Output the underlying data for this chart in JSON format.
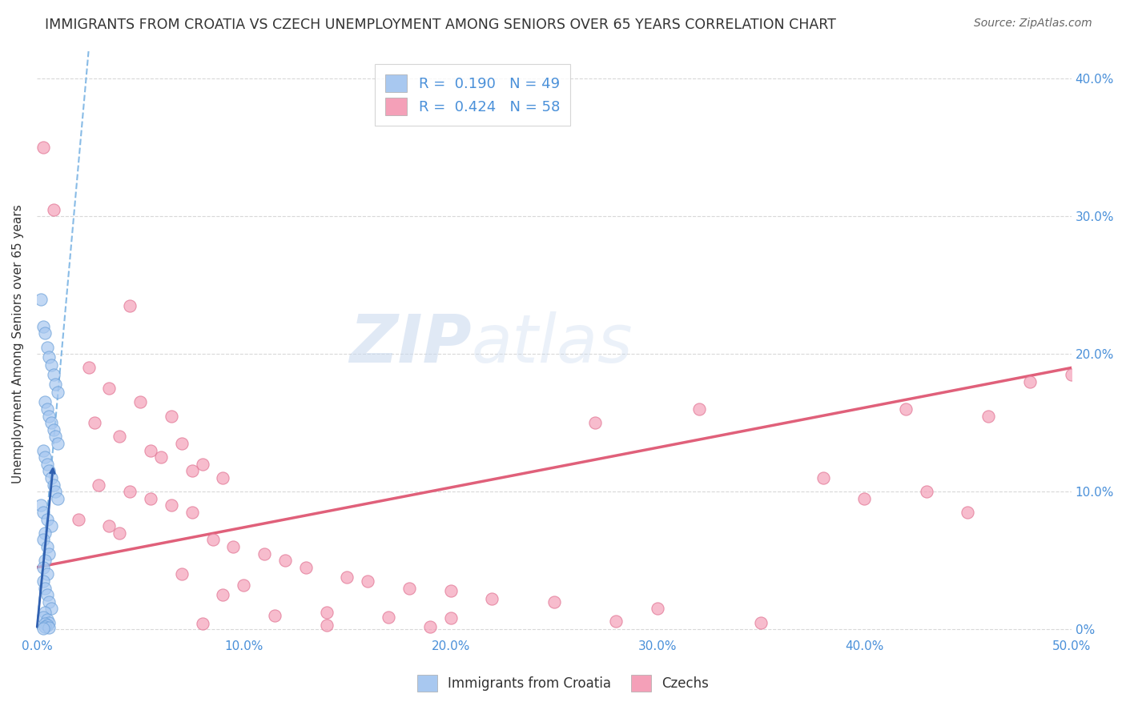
{
  "title": "IMMIGRANTS FROM CROATIA VS CZECH UNEMPLOYMENT AMONG SENIORS OVER 65 YEARS CORRELATION CHART",
  "source": "Source: ZipAtlas.com",
  "ylabel": "Unemployment Among Seniors over 65 years",
  "watermark_zip": "ZIP",
  "watermark_atlas": "atlas",
  "blue_scatter": [
    [
      0.2,
      24.0
    ],
    [
      0.3,
      22.0
    ],
    [
      0.4,
      21.5
    ],
    [
      0.5,
      20.5
    ],
    [
      0.6,
      19.8
    ],
    [
      0.7,
      19.2
    ],
    [
      0.8,
      18.5
    ],
    [
      0.9,
      17.8
    ],
    [
      1.0,
      17.2
    ],
    [
      0.4,
      16.5
    ],
    [
      0.5,
      16.0
    ],
    [
      0.6,
      15.5
    ],
    [
      0.7,
      15.0
    ],
    [
      0.8,
      14.5
    ],
    [
      0.9,
      14.0
    ],
    [
      1.0,
      13.5
    ],
    [
      0.3,
      13.0
    ],
    [
      0.4,
      12.5
    ],
    [
      0.5,
      12.0
    ],
    [
      0.6,
      11.5
    ],
    [
      0.7,
      11.0
    ],
    [
      0.8,
      10.5
    ],
    [
      0.9,
      10.0
    ],
    [
      1.0,
      9.5
    ],
    [
      0.2,
      9.0
    ],
    [
      0.3,
      8.5
    ],
    [
      0.5,
      8.0
    ],
    [
      0.7,
      7.5
    ],
    [
      0.4,
      7.0
    ],
    [
      0.3,
      6.5
    ],
    [
      0.5,
      6.0
    ],
    [
      0.6,
      5.5
    ],
    [
      0.4,
      5.0
    ],
    [
      0.3,
      4.5
    ],
    [
      0.5,
      4.0
    ],
    [
      0.3,
      3.5
    ],
    [
      0.4,
      3.0
    ],
    [
      0.5,
      2.5
    ],
    [
      0.6,
      2.0
    ],
    [
      0.7,
      1.5
    ],
    [
      0.4,
      1.2
    ],
    [
      0.3,
      0.9
    ],
    [
      0.5,
      0.7
    ],
    [
      0.6,
      0.5
    ],
    [
      0.4,
      0.4
    ],
    [
      0.5,
      0.3
    ],
    [
      0.4,
      0.2
    ],
    [
      0.6,
      0.15
    ],
    [
      0.3,
      0.08
    ]
  ],
  "pink_scatter": [
    [
      0.3,
      35.0
    ],
    [
      0.8,
      30.5
    ],
    [
      4.5,
      23.5
    ],
    [
      2.5,
      19.0
    ],
    [
      3.5,
      17.5
    ],
    [
      5.0,
      16.5
    ],
    [
      6.5,
      15.5
    ],
    [
      2.8,
      15.0
    ],
    [
      4.0,
      14.0
    ],
    [
      7.0,
      13.5
    ],
    [
      5.5,
      13.0
    ],
    [
      6.0,
      12.5
    ],
    [
      8.0,
      12.0
    ],
    [
      7.5,
      11.5
    ],
    [
      9.0,
      11.0
    ],
    [
      3.0,
      10.5
    ],
    [
      4.5,
      10.0
    ],
    [
      5.5,
      9.5
    ],
    [
      6.5,
      9.0
    ],
    [
      7.5,
      8.5
    ],
    [
      2.0,
      8.0
    ],
    [
      3.5,
      7.5
    ],
    [
      4.0,
      7.0
    ],
    [
      8.5,
      6.5
    ],
    [
      9.5,
      6.0
    ],
    [
      11.0,
      5.5
    ],
    [
      12.0,
      5.0
    ],
    [
      13.0,
      4.5
    ],
    [
      7.0,
      4.0
    ],
    [
      15.0,
      3.8
    ],
    [
      16.0,
      3.5
    ],
    [
      10.0,
      3.2
    ],
    [
      18.0,
      3.0
    ],
    [
      20.0,
      2.8
    ],
    [
      9.0,
      2.5
    ],
    [
      22.0,
      2.2
    ],
    [
      25.0,
      2.0
    ],
    [
      30.0,
      1.5
    ],
    [
      14.0,
      1.2
    ],
    [
      11.5,
      1.0
    ],
    [
      17.0,
      0.9
    ],
    [
      20.0,
      0.8
    ],
    [
      28.0,
      0.6
    ],
    [
      35.0,
      0.5
    ],
    [
      8.0,
      0.4
    ],
    [
      14.0,
      0.3
    ],
    [
      19.0,
      0.2
    ],
    [
      40.0,
      9.5
    ],
    [
      42.0,
      16.0
    ],
    [
      45.0,
      8.5
    ],
    [
      46.0,
      15.5
    ],
    [
      48.0,
      18.0
    ],
    [
      50.0,
      18.5
    ],
    [
      32.0,
      16.0
    ],
    [
      27.0,
      15.0
    ],
    [
      38.0,
      11.0
    ],
    [
      43.0,
      10.0
    ]
  ],
  "blue_dashed_line": [
    [
      0.0,
      0.0
    ],
    [
      2.5,
      42.0
    ]
  ],
  "blue_solid_line": [
    [
      0.0,
      0.0
    ],
    [
      0.8,
      12.0
    ]
  ],
  "pink_solid_line": [
    [
      0.0,
      4.5
    ],
    [
      50.0,
      19.0
    ]
  ],
  "xmin": 0.0,
  "xmax": 50.0,
  "ymin": -0.5,
  "ymax": 42.0,
  "x_ticks": [
    0.0,
    10.0,
    20.0,
    30.0,
    40.0,
    50.0
  ],
  "x_ticklabels": [
    "0.0%",
    "10.0%",
    "20.0%",
    "30.0%",
    "40.0%",
    "50.0%"
  ],
  "y_ticks": [
    0.0,
    10.0,
    20.0,
    30.0,
    40.0
  ],
  "y_ticklabels_right": [
    "0%",
    "10.0%",
    "20.0%",
    "30.0%",
    "40.0%"
  ],
  "axis_color": "#4a90d9",
  "grid_color": "#d8d8d8",
  "blue_fill": "#a8c8f0",
  "blue_edge": "#6a9fd8",
  "pink_fill": "#f4a0b8",
  "pink_edge": "#e07090",
  "blue_line_color": "#6aaae0",
  "pink_line_color": "#e0607a",
  "title_color": "#333333",
  "source_color": "#666666"
}
